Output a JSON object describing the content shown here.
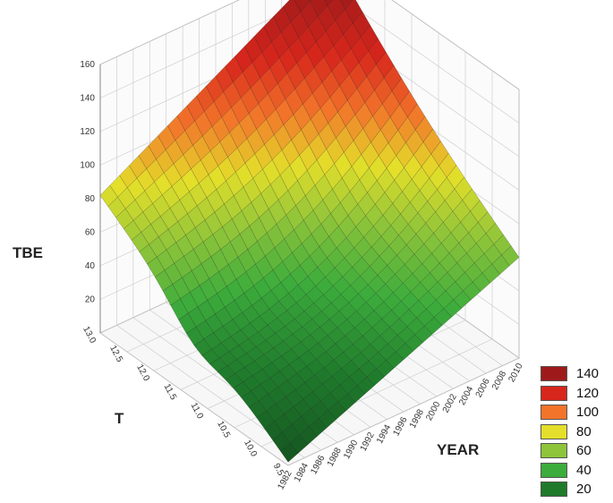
{
  "chart_data": {
    "type": "surface3d",
    "title": "",
    "zlabel": "TBE",
    "xlabel": "T",
    "ylabel": "YEAR",
    "z_ticks": [
      20,
      40,
      60,
      80,
      100,
      120,
      140,
      160
    ],
    "z_range": [
      0,
      160
    ],
    "t_ticks": [
      "9.5",
      "10.0",
      "10.5",
      "11.0",
      "11.5",
      "12.0",
      "12.5",
      "13.0"
    ],
    "t_range": [
      9.5,
      13.0
    ],
    "year_ticks": [
      "1982",
      "1984",
      "1986",
      "1988",
      "1990",
      "1992",
      "1994",
      "1996",
      "1998",
      "2000",
      "2002",
      "2004",
      "2006",
      "2008",
      "2010"
    ],
    "year_range": [
      1982,
      2010
    ],
    "corner_values": {
      "t_low_year_low": 2,
      "t_high_year_low": 82,
      "t_high_year_high": 160,
      "t_low_year_high": 60
    },
    "legend": [
      {
        "label": "140",
        "color": "#9e1a1a"
      },
      {
        "label": "120",
        "color": "#d7261c"
      },
      {
        "label": "100",
        "color": "#f2742a"
      },
      {
        "label": "80",
        "color": "#e4df2a"
      },
      {
        "label": "60",
        "color": "#8dc43a"
      },
      {
        "label": "40",
        "color": "#3cac3c"
      },
      {
        "label": "20",
        "color": "#1f7a2c"
      }
    ],
    "grid": true,
    "legend_position": "bottom-right"
  }
}
